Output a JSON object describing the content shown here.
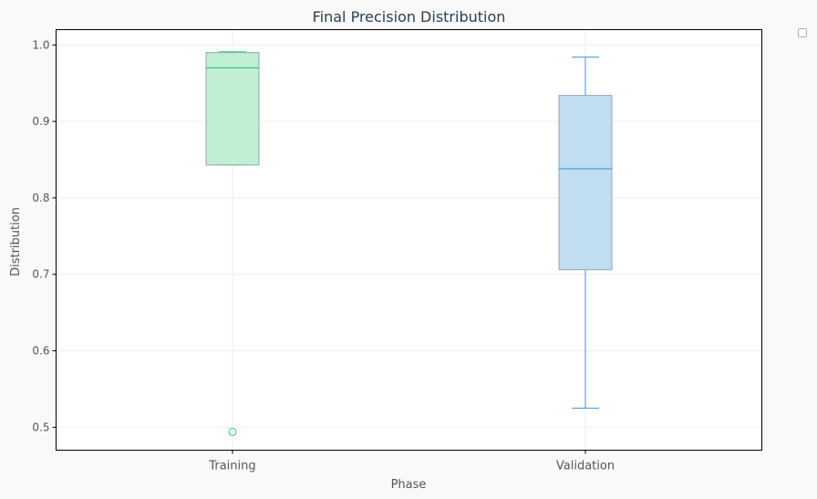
{
  "chart_data": {
    "type": "box",
    "title": "Final Precision Distribution",
    "xlabel": "Phase",
    "ylabel": "Distribution",
    "categories": [
      "Training",
      "Validation"
    ],
    "ylim": [
      0.47,
      1.02
    ],
    "yticks": [
      0.5,
      0.6,
      0.7,
      0.8,
      0.9,
      1.0
    ],
    "ytick_labels": [
      "0.5",
      "0.6",
      "0.7",
      "0.8",
      "0.9",
      "1.0"
    ],
    "grid": true,
    "legend": "top-right",
    "boxes": [
      {
        "category": "Training",
        "whisker_low": 0.843,
        "q1": 0.843,
        "median": 0.97,
        "q3": 0.99,
        "whisker_high": 0.991,
        "outliers": [
          0.494
        ],
        "fill": "#c1efd4",
        "line": "#2ecc71"
      },
      {
        "category": "Validation",
        "whisker_low": 0.525,
        "q1": 0.706,
        "median": 0.838,
        "q3": 0.934,
        "whisker_high": 0.984,
        "outliers": [],
        "fill": "#c0ddf2",
        "line": "#3498db"
      }
    ],
    "colors": {
      "title": "#2c3e50",
      "axis_text": "#555555",
      "box_edge": "#95a5b6",
      "grid": "#eeeeee",
      "axes_frame": "#000000"
    }
  }
}
